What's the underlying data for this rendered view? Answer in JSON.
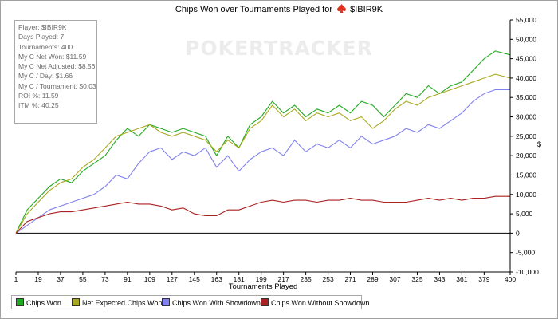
{
  "chart_data": {
    "type": "line",
    "title_prefix": "Chips Won over Tournaments Played for",
    "title_player": "$IBIR9K",
    "xlabel": "Tournaments Played",
    "ylabel": "$",
    "x_ticks": [
      1,
      19,
      37,
      55,
      73,
      91,
      109,
      127,
      145,
      163,
      181,
      199,
      217,
      235,
      253,
      271,
      289,
      307,
      325,
      343,
      361,
      379,
      400
    ],
    "xlim": [
      1,
      400
    ],
    "y_ticks": [
      -10000,
      -5000,
      0,
      5000,
      10000,
      15000,
      20000,
      25000,
      30000,
      35000,
      40000,
      45000,
      50000,
      55000
    ],
    "y_tick_labels": [
      "-10,000",
      "-5,000",
      "0",
      "5,000",
      "10,000",
      "15,000",
      "20,000",
      "25,000",
      "30,000",
      "35,000",
      "40,000",
      "45,000",
      "50,000",
      "55,000"
    ],
    "ylim": [
      -10000,
      55000
    ],
    "grid": false,
    "legend_position": "bottom-left",
    "x": [
      1,
      10,
      19,
      28,
      37,
      46,
      55,
      64,
      73,
      82,
      91,
      100,
      109,
      118,
      127,
      136,
      145,
      154,
      163,
      172,
      181,
      190,
      199,
      208,
      217,
      226,
      235,
      244,
      253,
      262,
      271,
      280,
      289,
      298,
      307,
      316,
      325,
      334,
      343,
      352,
      361,
      370,
      379,
      388,
      400
    ],
    "series": [
      {
        "name": "Chips Won",
        "color": "#22aa22",
        "values": [
          0,
          6000,
          9000,
          12000,
          14000,
          13000,
          16000,
          18000,
          20000,
          24000,
          27000,
          25000,
          28000,
          27000,
          26000,
          27000,
          26000,
          25000,
          20000,
          25000,
          22000,
          28000,
          30000,
          34000,
          31000,
          33000,
          30000,
          32000,
          31000,
          33000,
          31000,
          34000,
          33000,
          30000,
          33000,
          36000,
          35000,
          38000,
          36000,
          38000,
          39000,
          42000,
          45000,
          47000,
          46000
        ]
      },
      {
        "name": "Net Expected Chips Won",
        "color": "#a8a820",
        "values": [
          0,
          5000,
          8000,
          11000,
          13000,
          14000,
          17000,
          19000,
          22000,
          25000,
          26000,
          27000,
          28000,
          26000,
          25000,
          26000,
          25000,
          24000,
          21000,
          24000,
          22000,
          27000,
          29000,
          33000,
          30000,
          32000,
          29000,
          31000,
          30000,
          31000,
          29000,
          30000,
          27000,
          29000,
          32000,
          34000,
          33000,
          35000,
          36000,
          37000,
          38000,
          39000,
          40000,
          41000,
          40000
        ]
      },
      {
        "name": "Chips Won With Showdown",
        "color": "#8080ee",
        "values": [
          0,
          2000,
          4000,
          6000,
          7000,
          8000,
          9000,
          10000,
          12000,
          15000,
          14000,
          18000,
          21000,
          22000,
          19000,
          21000,
          20000,
          22000,
          17000,
          20000,
          16000,
          19000,
          21000,
          22000,
          20000,
          24000,
          21000,
          23000,
          22000,
          24000,
          22000,
          25000,
          23000,
          24000,
          25000,
          27000,
          26000,
          28000,
          27000,
          29000,
          31000,
          34000,
          36000,
          37000,
          37000
        ]
      },
      {
        "name": "Chips Won Without Showdown",
        "color": "#aa2222",
        "values": [
          0,
          3000,
          4000,
          5000,
          5500,
          5500,
          6000,
          6500,
          7000,
          7500,
          8000,
          7500,
          7500,
          7000,
          6000,
          6500,
          5000,
          4500,
          4500,
          6000,
          6000,
          7000,
          8000,
          8500,
          8000,
          8500,
          8500,
          8000,
          8500,
          8500,
          9000,
          8500,
          8500,
          8000,
          8000,
          8000,
          8500,
          9000,
          8500,
          9000,
          8500,
          9000,
          9000,
          9500,
          9500
        ]
      }
    ]
  },
  "stats": [
    "Player: $IBIR9K",
    "Days Played: 7",
    "Tournaments: 400",
    "My C Net Won: $11.59",
    "My C Net Adjusted: $8.56",
    "My C / Day: $1.66",
    "My C / Tournament: $0.03",
    "ROI %: 11.59",
    "ITM %: 40.25"
  ],
  "watermark": "POKERTRACKER",
  "colors": {
    "axis": "#000000",
    "zero_line": "#000000",
    "spade": "#e03020"
  }
}
